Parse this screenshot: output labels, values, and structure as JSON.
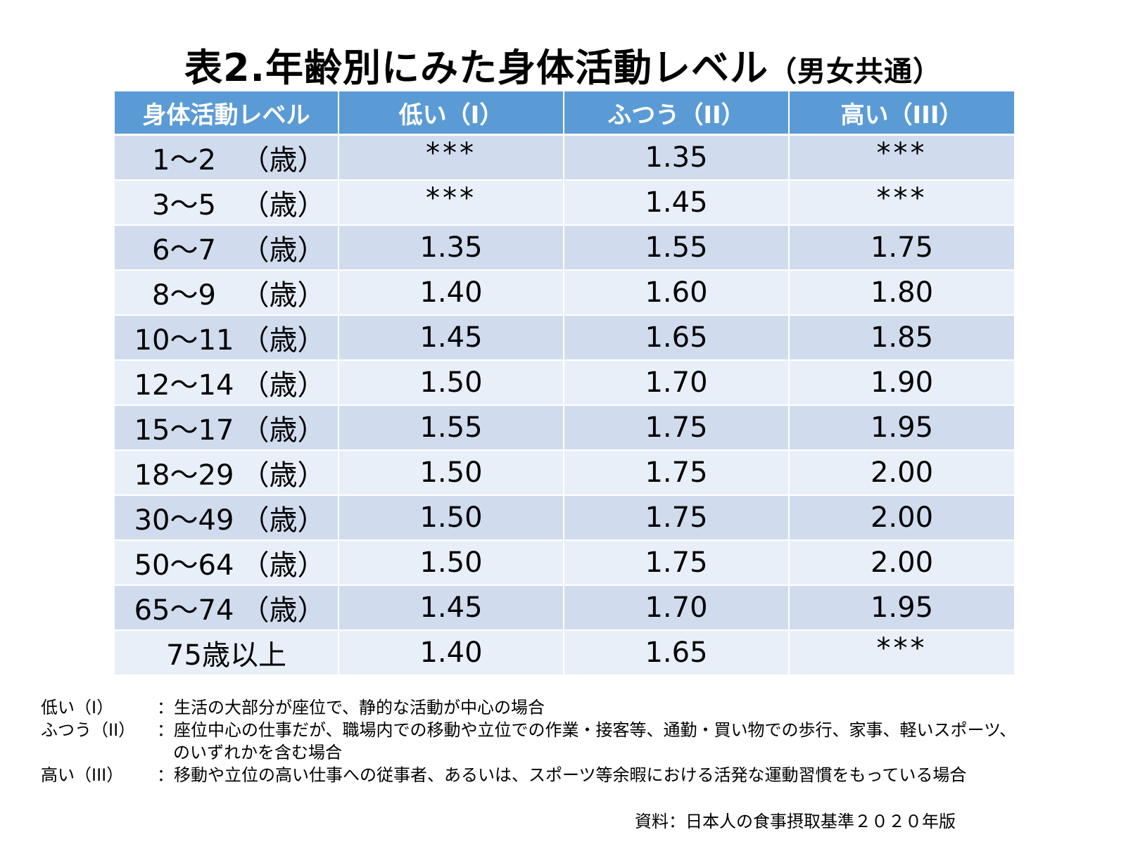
{
  "title": {
    "main": "表2.年齢別にみた身体活動レベル",
    "sub": "（男女共通）"
  },
  "table": {
    "headers": [
      "身体活動レベル",
      "低い（I）",
      "ふつう（II）",
      "高い（III）"
    ],
    "rows": [
      {
        "age": "1～2",
        "unit": "（歳）",
        "low": "***",
        "normal": "1.35",
        "high": "***"
      },
      {
        "age": "3～5",
        "unit": "（歳）",
        "low": "***",
        "normal": "1.45",
        "high": "***"
      },
      {
        "age": "6～7",
        "unit": "（歳）",
        "low": "1.35",
        "normal": "1.55",
        "high": "1.75"
      },
      {
        "age": "8～9",
        "unit": "（歳）",
        "low": "1.40",
        "normal": "1.60",
        "high": "1.80"
      },
      {
        "age": "10～11",
        "unit": "（歳）",
        "low": "1.45",
        "normal": "1.65",
        "high": "1.85"
      },
      {
        "age": "12～14",
        "unit": "（歳）",
        "low": "1.50",
        "normal": "1.70",
        "high": "1.90"
      },
      {
        "age": "15～17",
        "unit": "（歳）",
        "low": "1.55",
        "normal": "1.75",
        "high": "1.95"
      },
      {
        "age": "18～29",
        "unit": "（歳）",
        "low": "1.50",
        "normal": "1.75",
        "high": "2.00"
      },
      {
        "age": "30～49",
        "unit": "（歳）",
        "low": "1.50",
        "normal": "1.75",
        "high": "2.00"
      },
      {
        "age": "50～64",
        "unit": "（歳）",
        "low": "1.50",
        "normal": "1.75",
        "high": "2.00"
      },
      {
        "age": "65～74",
        "unit": "（歳）",
        "low": "1.45",
        "normal": "1.70",
        "high": "1.95"
      },
      {
        "age_full": "75歳以上",
        "low": "1.40",
        "normal": "1.65",
        "high": "***"
      }
    ]
  },
  "notes": [
    {
      "label": "低い（I）",
      "text": "：生活の大部分が座位で、静的な活動が中心の場合"
    },
    {
      "label": "ふつう（II）",
      "text": "：座位中心の仕事だが、職場内での移動や立位での作業・接客等、通勤・買い物での歩行、家事、軽いスポーツ、",
      "cont": "のいずれかを含む場合"
    },
    {
      "label": "高い（III）",
      "text": "：移動や立位の高い仕事への従事者、あるいは、スポーツ等余暇における活発な運動習慣をもっている場合"
    }
  ],
  "source": "資料：日本人の食事摂取基準２０２０年版",
  "colors": {
    "header_bg": "#5b9bd5",
    "row_dark": "#d0dcee",
    "row_light": "#e9eff8"
  }
}
